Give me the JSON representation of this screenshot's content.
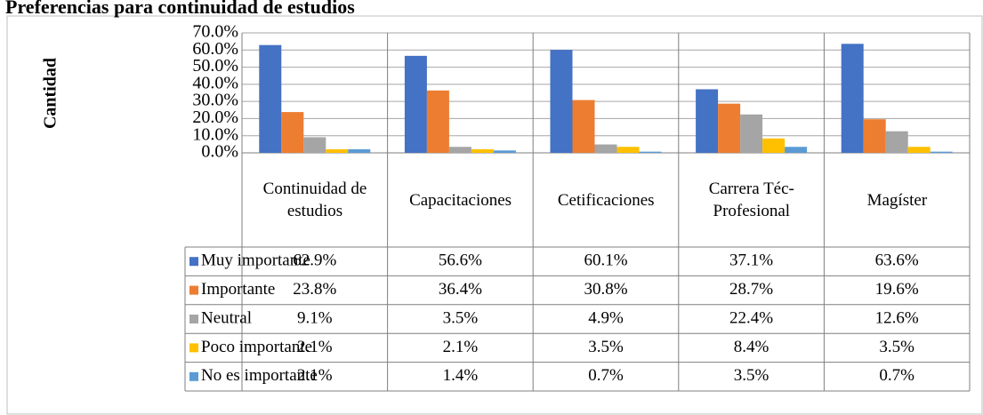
{
  "chart_data": {
    "type": "bar",
    "title": "Preferencias para continuidad de estudios",
    "y_label": "Cantidad",
    "categories": [
      "Continuidad de estudios",
      "Capacitaciones",
      "Cetificaciones",
      "Carrera Téc-Profesional",
      "Magíster"
    ],
    "series": [
      {
        "name": "Muy importante",
        "color": "#4472c4",
        "values": [
          62.9,
          56.6,
          60.1,
          37.1,
          63.6
        ],
        "value_labels": [
          "62.9%",
          "56.6%",
          "60.1%",
          "37.1%",
          "63.6%"
        ]
      },
      {
        "name": "Importante",
        "color": "#ed7d31",
        "values": [
          23.8,
          36.4,
          30.8,
          28.7,
          19.6
        ],
        "value_labels": [
          "23.8%",
          "36.4%",
          "30.8%",
          "28.7%",
          "19.6%"
        ]
      },
      {
        "name": "Neutral",
        "color": "#a5a5a5",
        "values": [
          9.1,
          3.5,
          4.9,
          22.4,
          12.6
        ],
        "value_labels": [
          "9.1%",
          "3.5%",
          "4.9%",
          "22.4%",
          "12.6%"
        ]
      },
      {
        "name": "Poco importante",
        "color": "#ffc000",
        "values": [
          2.1,
          2.1,
          3.5,
          8.4,
          3.5
        ],
        "value_labels": [
          "2.1%",
          "2.1%",
          "3.5%",
          "8.4%",
          "3.5%"
        ]
      },
      {
        "name": "No es importante",
        "color": "#5b9bd5",
        "values": [
          2.1,
          1.4,
          0.7,
          3.5,
          0.7
        ],
        "value_labels": [
          "2.1%",
          "1.4%",
          "0.7%",
          "3.5%",
          "0.7%"
        ]
      }
    ],
    "ylim": [
      0,
      70
    ],
    "yticks": [
      {
        "value": 0,
        "label": "0.0%"
      },
      {
        "value": 10,
        "label": "10.0%"
      },
      {
        "value": 20,
        "label": "20.0%"
      },
      {
        "value": 30,
        "label": "30.0%"
      },
      {
        "value": 40,
        "label": "40.0%"
      },
      {
        "value": 50,
        "label": "50.0%"
      },
      {
        "value": 60,
        "label": "60.0%"
      },
      {
        "value": 70,
        "label": "70.0%"
      }
    ],
    "grid": true
  }
}
